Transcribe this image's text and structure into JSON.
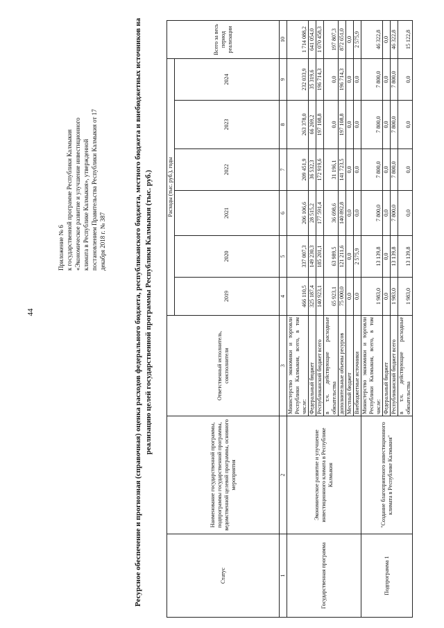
{
  "page_number": "44",
  "appendix": [
    "Приложение № 6",
    "к государственной программе Республики Калмыкия",
    "«Экономическое развитие и улучшение инвестиционного",
    "климата в Республике Калмыкия», утвержденной",
    "постановлением Правительства Республики Калмыкия от 17",
    "декабря 2018 г. № 387"
  ],
  "title": "Ресурсное обеспечение и прогнозная (справочная) оценка расходов федерального бюджета, республиканского бюджета, местного бюджета и внебюджетных источников на реализацию целей государственной программы Республики Калмыкия (тыс. руб.)",
  "table": {
    "header": {
      "status": "Статус",
      "name": "Наименование государственной программы, подпрограммы государственной программы, ведомственной целевой программы, основного мероприятия",
      "executor": "Ответственный исполнитель, соисполнители",
      "expenses": "Расходы (тыс. руб.), годы",
      "years": [
        "2019",
        "2020",
        "2021",
        "2022",
        "2023",
        "2024"
      ],
      "total": "Всего за весь период реализации",
      "numbers": [
        "1",
        "2",
        "3",
        "4",
        "5",
        "6",
        "7",
        "8",
        "9",
        "10"
      ]
    },
    "groups": [
      {
        "status": "Государственная программа",
        "name": "Экономическое развитие и улучшение инвестиционного климата в Республике Калмыкия",
        "rows": [
          {
            "executor": "Министерство экономики и торговли Республики Калмыкия, всего, в том числе:",
            "values": [
              "466 110,5",
              "337 007,3",
              "206 106,6",
              "209 451,9",
              "263 378,0",
              "232 033,9",
              "1 714 088,2"
            ]
          },
          {
            "executor": "Федеральный бюджет",
            "values": [
              "325 187,4",
              "149 230,3",
              "28 515,2",
              "36 532,3",
              "66 269,2",
              "35 319,6",
              "641 054,0"
            ]
          },
          {
            "executor": "Республиканский бюджет всего",
            "values": [
              "140 923,1",
              "185 201,1",
              "177 591,4",
              "172 919,6",
              "197 108,8",
              "196 714,3",
              "1 070 458,3"
            ]
          },
          {
            "executor": "в т.ч. действующие расходные обязательства",
            "values": [
              "65 923,1",
              "63 989,5",
              "36 698,6",
              "31 196,1",
              "0,0",
              "0,0",
              "197 807,3"
            ]
          },
          {
            "executor": "дополнительные объемы ресурсов",
            "values": [
              "75 000,0",
              "121 211,6",
              "140 892,8",
              "141 723,5",
              "197 108,8",
              "196 714,3",
              "872 651,0"
            ]
          },
          {
            "executor": "Местный бюджет",
            "values": [
              "0,0",
              "0,0",
              "0,0",
              "0,0",
              "0,0",
              "0,0",
              "0,0"
            ]
          },
          {
            "executor": "Внебюджетные источники",
            "values": [
              "0,0",
              "2 575,9",
              "0,0",
              "0,0",
              "0,0",
              "0,0",
              "2 575,9"
            ]
          }
        ]
      },
      {
        "status": "Подпрограмма 1",
        "name": "\"Создание благоприятного инвестиционного климата в Республике Калмыкия\"",
        "rows": [
          {
            "executor": "Министерство экономики и торговли Республики Калмыкия, всего, в том числе:",
            "values": [
              "1 983,0",
              "13 139,8",
              "7 800,0",
              "7 800,0",
              "7 800,0",
              "7 800,0",
              "46 322,8"
            ]
          },
          {
            "executor": "Федеральный бюджет",
            "values": [
              "0,0",
              "0,0",
              "0,0",
              "0,0",
              "0,0",
              "0,0",
              "0,0"
            ]
          },
          {
            "executor": "Республиканский бюджет всего",
            "values": [
              "1 983,0",
              "13 139,8",
              "7 800,0",
              "7 800,0",
              "7 800,0",
              "7 800,0",
              "46 322,8"
            ]
          },
          {
            "executor": "в т.ч. действующие расходные обязательства",
            "values": [
              "1 983,0",
              "13 139,8",
              "0,0",
              "0,0",
              "0,0",
              "0,0",
              "15 122,8"
            ]
          }
        ]
      }
    ]
  }
}
